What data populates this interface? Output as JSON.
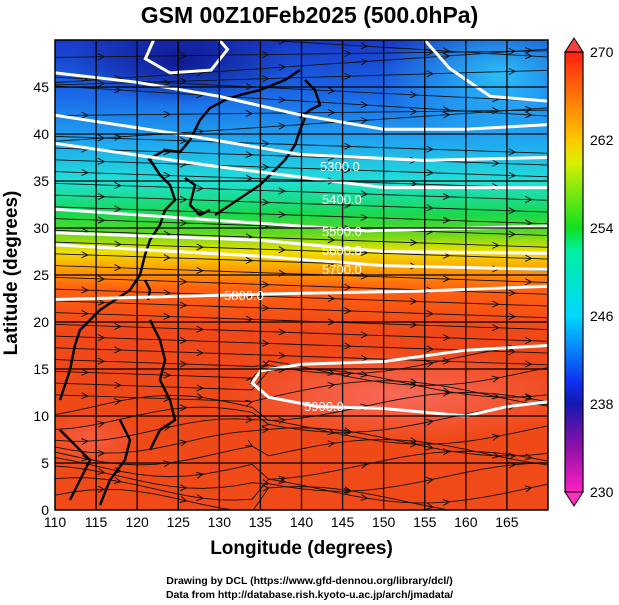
{
  "title": "GSM 00Z10Feb2025 (500.0hPa)",
  "x_axis": {
    "label": "Longitude (degrees)",
    "range": [
      110,
      170
    ],
    "ticks": [
      "110",
      "115",
      "120",
      "125",
      "130",
      "135",
      "140",
      "145",
      "150",
      "155",
      "160",
      "165"
    ]
  },
  "y_axis": {
    "label": "Latitude  (degrees)",
    "range": [
      0,
      50
    ],
    "ticks": [
      "0",
      "5",
      "10",
      "15",
      "20",
      "25",
      "30",
      "35",
      "40",
      "45"
    ]
  },
  "colorbar": {
    "ticks": [
      "230",
      "238",
      "246",
      "254",
      "262",
      "270"
    ],
    "range": [
      230,
      270
    ],
    "colors": [
      "#ff20c0",
      "#8010a0",
      "#1020c0",
      "#1060ff",
      "#00e8ff",
      "#00e880",
      "#20d020",
      "#e0f000",
      "#ffc000",
      "#ff4010"
    ]
  },
  "contour_labels": [
    "5300.0",
    "5400.0",
    "5500.0",
    "5600.0",
    "5700.0",
    "5800.0",
    "5900.0"
  ],
  "credits": {
    "line1": "Drawing by DCL (https://www.gfd-dennou.org/library/dcl/)",
    "line2": "Data from http://database.rish.kyoto-u.ac.jp/arch/jmadata/"
  }
}
